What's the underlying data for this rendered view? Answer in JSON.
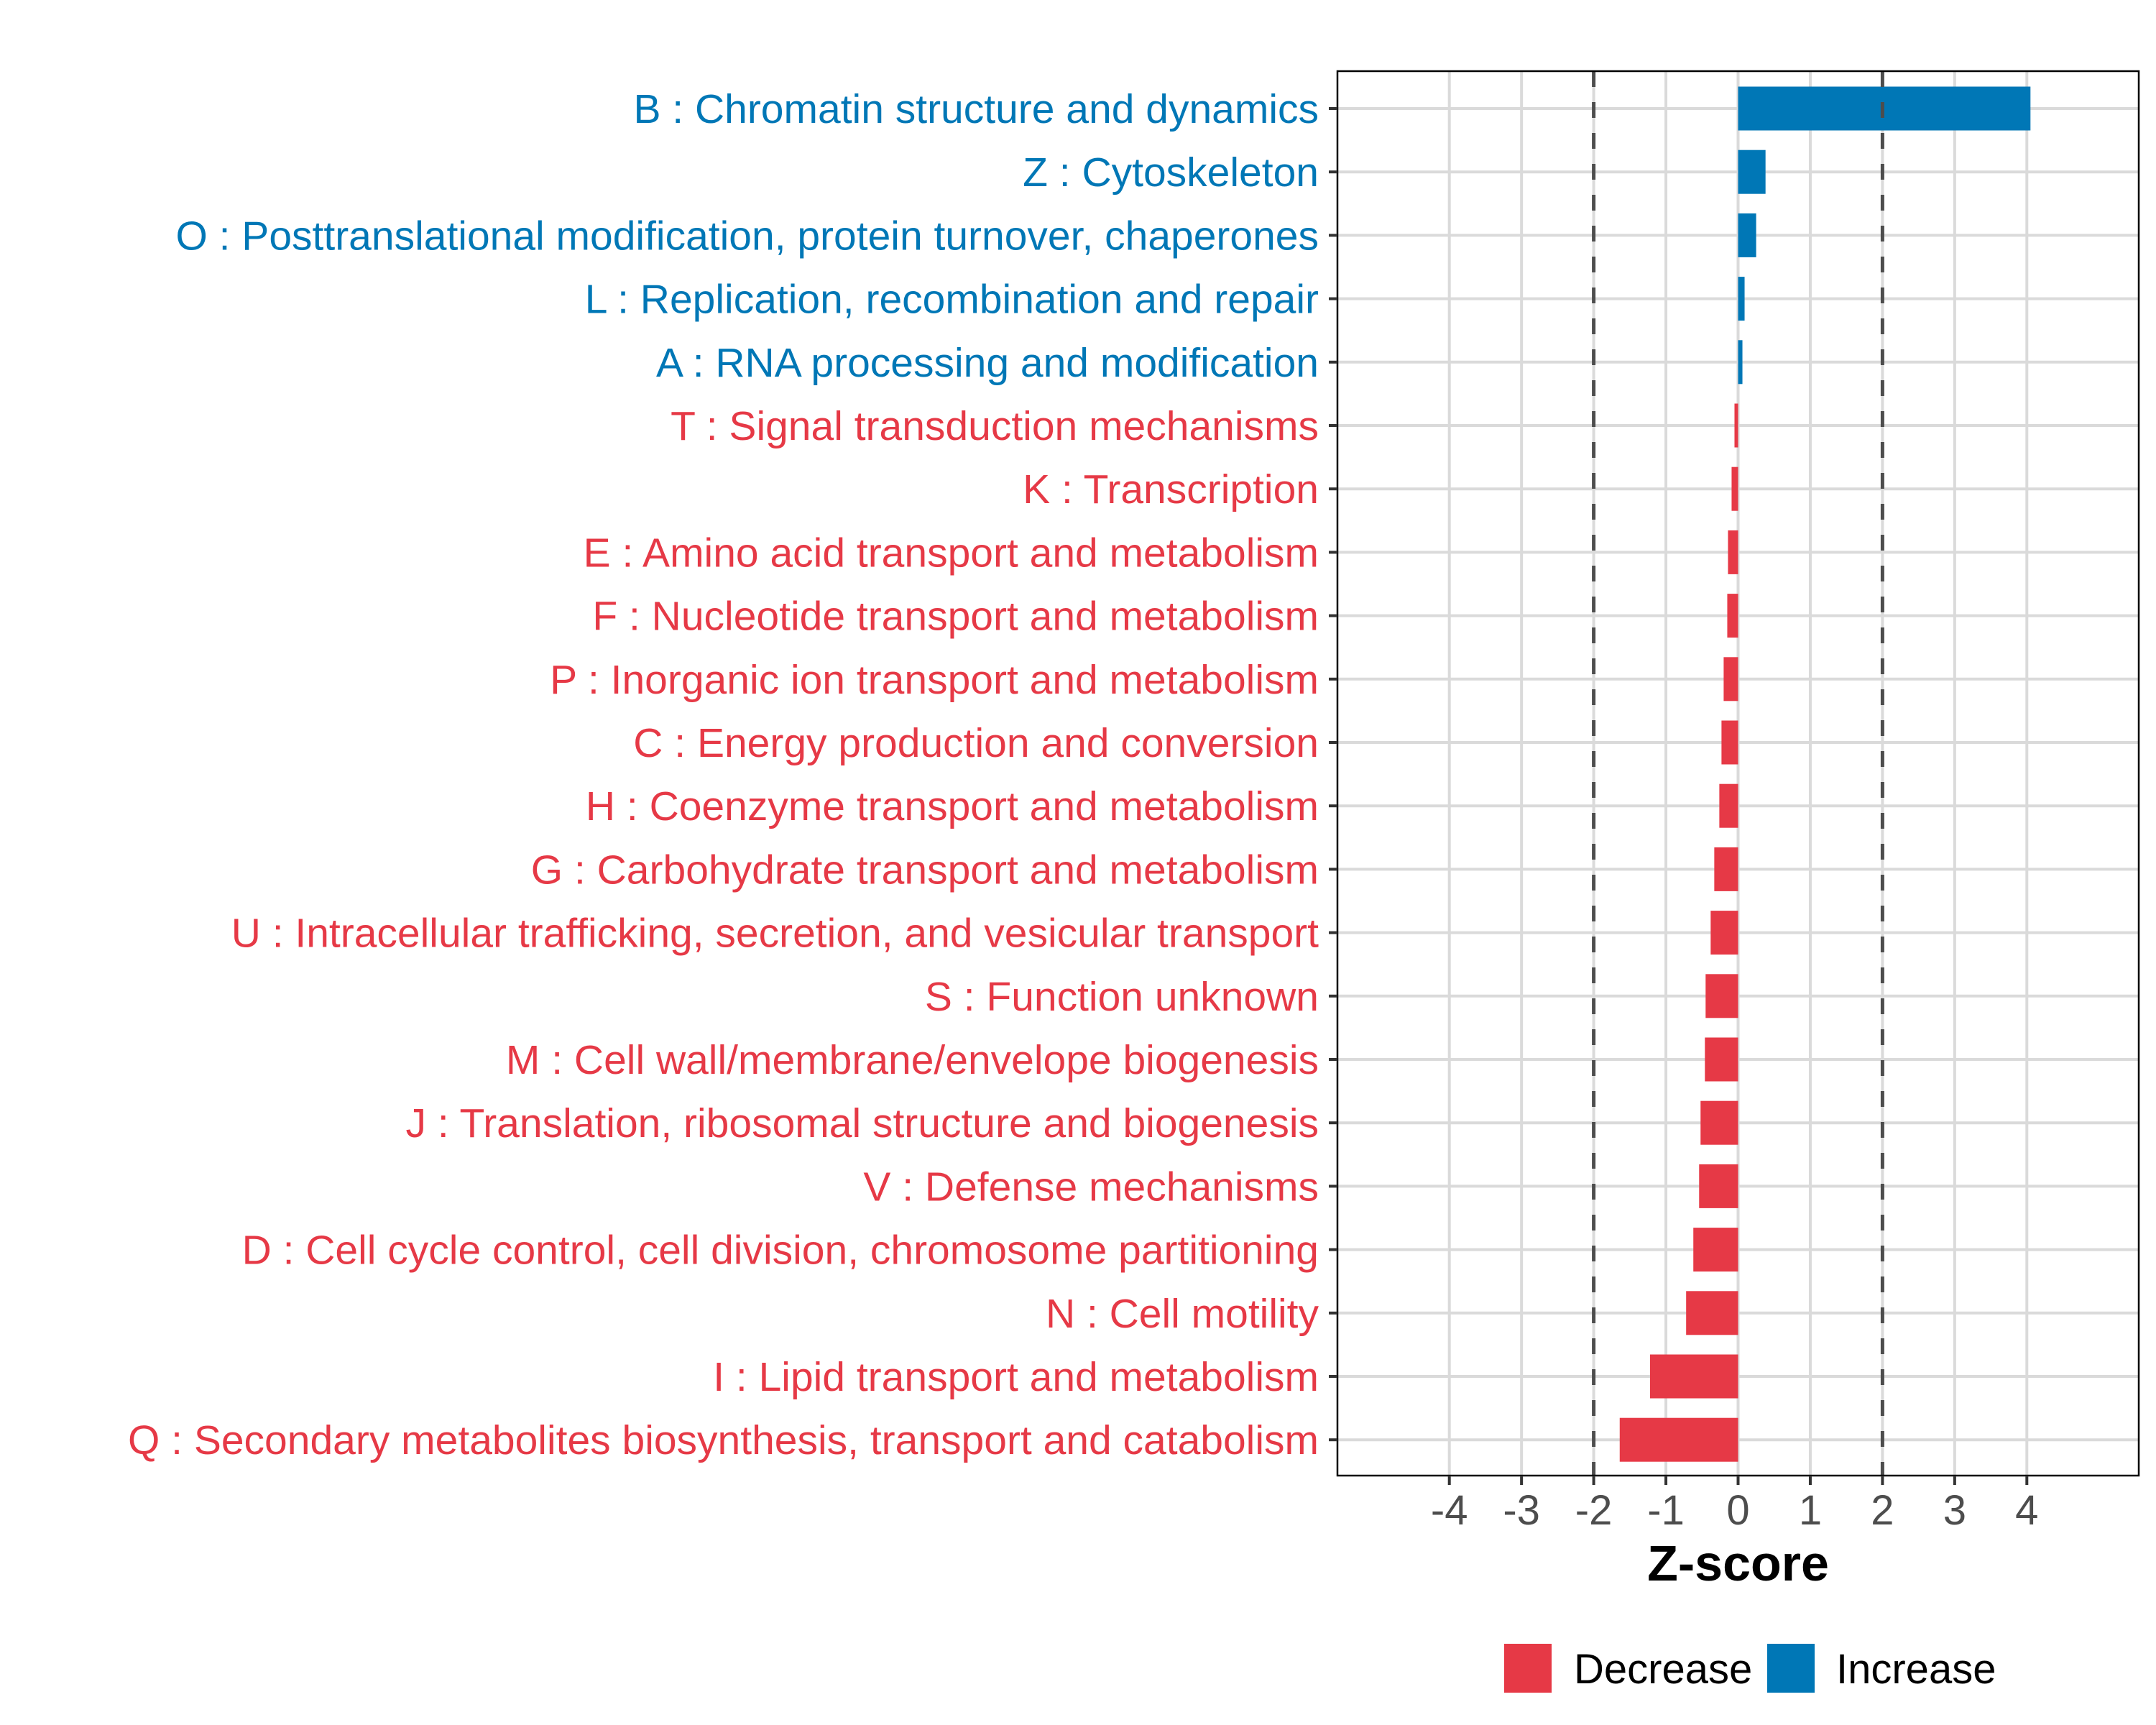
{
  "chart_data": {
    "type": "bar",
    "orientation": "horizontal",
    "title": "",
    "xlabel": "Z-score",
    "ylabel": "",
    "xlim": [
      -5.55,
      5.55
    ],
    "xticks": [
      -4,
      -3,
      -2,
      -1,
      0,
      1,
      2,
      3,
      4
    ],
    "xtick_labels": [
      "-4",
      "-3",
      "-2",
      "-1",
      "0",
      "1",
      "2",
      "3",
      "4"
    ],
    "reference_lines": [
      -2,
      2
    ],
    "grid": true,
    "legend": {
      "position": "bottom",
      "entries": [
        {
          "name": "Decrease",
          "color": "#E63946"
        },
        {
          "name": "Increase",
          "color": "#0077B6"
        }
      ]
    },
    "categories": [
      "B : Chromatin structure and dynamics",
      "Z : Cytoskeleton",
      "O : Posttranslational modification, protein turnover, chaperones",
      "L : Replication, recombination and repair",
      "A : RNA processing and modification",
      "T : Signal transduction mechanisms",
      "K : Transcription",
      "E : Amino acid transport and metabolism",
      "F : Nucleotide transport and metabolism",
      "P : Inorganic ion transport and metabolism",
      "C : Energy production and conversion",
      "H : Coenzyme transport and metabolism",
      "G : Carbohydrate transport and metabolism",
      "U : Intracellular trafficking, secretion, and vesicular transport",
      "S : Function unknown",
      "M : Cell wall/membrane/envelope biogenesis",
      "J : Translation, ribosomal structure and biogenesis",
      "V : Defense mechanisms",
      "D : Cell cycle control, cell division, chromosome partitioning",
      "N : Cell motility",
      "I : Lipid transport and metabolism",
      "Q : Secondary metabolites biosynthesis, transport and catabolism"
    ],
    "values": [
      4.05,
      0.38,
      0.25,
      0.09,
      0.06,
      -0.05,
      -0.09,
      -0.14,
      -0.15,
      -0.2,
      -0.23,
      -0.26,
      -0.33,
      -0.38,
      -0.45,
      -0.46,
      -0.52,
      -0.54,
      -0.62,
      -0.72,
      -1.22,
      -1.64
    ],
    "groups": [
      "Increase",
      "Increase",
      "Increase",
      "Increase",
      "Increase",
      "Decrease",
      "Decrease",
      "Decrease",
      "Decrease",
      "Decrease",
      "Decrease",
      "Decrease",
      "Decrease",
      "Decrease",
      "Decrease",
      "Decrease",
      "Decrease",
      "Decrease",
      "Decrease",
      "Decrease",
      "Decrease",
      "Decrease"
    ]
  },
  "colors": {
    "increase": "#0077B6",
    "decrease": "#E63946",
    "grid": "#DADADA",
    "reference_line": "#4D4D4D",
    "tick_text": "#4D4D4D"
  }
}
